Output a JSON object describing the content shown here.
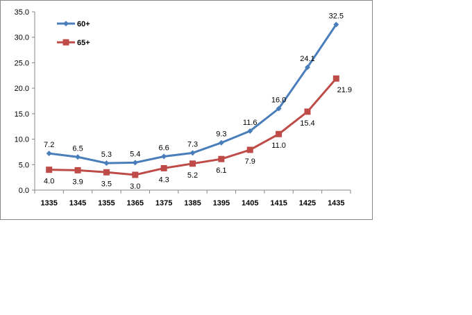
{
  "chart_data": {
    "type": "line",
    "title": "",
    "xlabel": "",
    "ylabel": "",
    "categories": [
      "1335",
      "1345",
      "1355",
      "1365",
      "1375",
      "1385",
      "1395",
      "1405",
      "1415",
      "1425",
      "1435"
    ],
    "ylim": [
      0,
      35
    ],
    "yticks": [
      "0.0",
      "5.0",
      "10.0",
      "15.0",
      "20.0",
      "25.0",
      "30.0",
      "35.0"
    ],
    "grid": false,
    "legend": "top-left",
    "series": [
      {
        "name": "60+",
        "color": "#4a7ebb",
        "marker": "diamond",
        "values": [
          7.2,
          6.5,
          5.3,
          5.4,
          6.6,
          7.3,
          9.3,
          11.6,
          16.0,
          24.1,
          32.5
        ],
        "labels": [
          "7.2",
          "6.5",
          "5.3",
          "5.4",
          "6.6",
          "7.3",
          "9.3",
          "11.6",
          "16.0",
          "24.1",
          "32.5"
        ]
      },
      {
        "name": "65+",
        "color": "#be4b48",
        "marker": "square",
        "values": [
          4.0,
          3.9,
          3.5,
          3.0,
          4.3,
          5.2,
          6.1,
          7.9,
          11.0,
          15.4,
          21.9
        ],
        "labels": [
          "4.0",
          "3.9",
          "3.5",
          "3.0",
          "4.3",
          "5.2",
          "6.1",
          "7.9",
          "11.0",
          "15.4",
          "21.9"
        ]
      }
    ]
  }
}
